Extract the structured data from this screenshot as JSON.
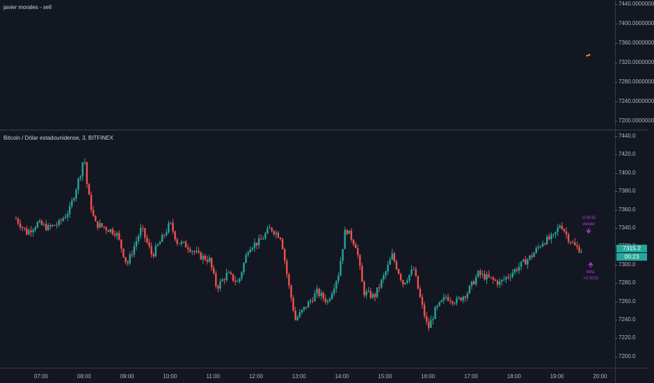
{
  "top_pane": {
    "title": "javier morales - sell",
    "price_ticks": [
      "7440.0000000",
      "7400.0000000",
      "7360.0000000",
      "7320.0000000",
      "7280.0000000",
      "7240.0000000",
      "7200.0000000"
    ],
    "dot_color": "#ff9800"
  },
  "main_pane": {
    "title": "Bitcoin / Dólar estadounidense, 3, BITFINEX",
    "price_ticks": [
      "7440.0",
      "7420.0",
      "7400.0",
      "7380.0",
      "7360.0",
      "7340.0",
      "7320.0",
      "7300.0",
      "7280.0",
      "7260.0",
      "7240.0",
      "7220.0",
      "7200.0"
    ],
    "last_price": "7315.2",
    "countdown": "00:23",
    "signals": {
      "sell_value": "-0.0015",
      "sell_label": "vender",
      "buy_label": "WAL",
      "buy_value": "+0.0015"
    }
  },
  "time_axis": [
    "07:00",
    "08:00",
    "09:00",
    "10:00",
    "11:00",
    "12:00",
    "13:00",
    "14:00",
    "15:00",
    "16:00",
    "17:00",
    "18:00",
    "19:00",
    "20:00"
  ],
  "colors": {
    "bull": "#26a69a",
    "bear": "#ef5350",
    "background": "#131722",
    "signal": "#b041d9"
  },
  "chart_data": {
    "type": "candlestick",
    "title": "Bitcoin / Dólar estadounidense, 3, BITFINEX",
    "ylim": [
      7200,
      7440
    ],
    "x_ticks": [
      "07:00",
      "08:00",
      "09:00",
      "10:00",
      "11:00",
      "12:00",
      "13:00",
      "14:00",
      "15:00",
      "16:00",
      "17:00",
      "18:00",
      "19:00",
      "20:00"
    ],
    "close_path": [
      [
        "06:25",
        7350
      ],
      [
        "06:40",
        7335
      ],
      [
        "06:55",
        7345
      ],
      [
        "07:10",
        7340
      ],
      [
        "07:25",
        7345
      ],
      [
        "07:40",
        7360
      ],
      [
        "07:55",
        7400
      ],
      [
        "08:00",
        7420
      ],
      [
        "08:05",
        7380
      ],
      [
        "08:15",
        7345
      ],
      [
        "08:30",
        7340
      ],
      [
        "08:45",
        7335
      ],
      [
        "09:00",
        7300
      ],
      [
        "09:10",
        7320
      ],
      [
        "09:20",
        7340
      ],
      [
        "09:35",
        7310
      ],
      [
        "09:50",
        7330
      ],
      [
        "10:00",
        7345
      ],
      [
        "10:10",
        7325
      ],
      [
        "10:25",
        7320
      ],
      [
        "10:40",
        7310
      ],
      [
        "10:55",
        7305
      ],
      [
        "11:05",
        7275
      ],
      [
        "11:20",
        7290
      ],
      [
        "11:35",
        7280
      ],
      [
        "11:50",
        7320
      ],
      [
        "12:05",
        7325
      ],
      [
        "12:20",
        7340
      ],
      [
        "12:35",
        7330
      ],
      [
        "12:45",
        7280
      ],
      [
        "12:55",
        7240
      ],
      [
        "13:10",
        7255
      ],
      [
        "13:25",
        7270
      ],
      [
        "13:40",
        7260
      ],
      [
        "13:55",
        7290
      ],
      [
        "14:05",
        7340
      ],
      [
        "14:20",
        7320
      ],
      [
        "14:30",
        7270
      ],
      [
        "14:45",
        7265
      ],
      [
        "15:00",
        7290
      ],
      [
        "15:10",
        7310
      ],
      [
        "15:25",
        7280
      ],
      [
        "15:40",
        7295
      ],
      [
        "15:50",
        7260
      ],
      [
        "16:00",
        7230
      ],
      [
        "16:10",
        7250
      ],
      [
        "16:25",
        7265
      ],
      [
        "16:40",
        7260
      ],
      [
        "16:55",
        7270
      ],
      [
        "17:10",
        7290
      ],
      [
        "17:25",
        7285
      ],
      [
        "17:40",
        7280
      ],
      [
        "17:55",
        7290
      ],
      [
        "18:10",
        7300
      ],
      [
        "18:25",
        7310
      ],
      [
        "18:40",
        7325
      ],
      [
        "18:55",
        7330
      ],
      [
        "19:05",
        7345
      ],
      [
        "19:15",
        7330
      ],
      [
        "19:25",
        7320
      ],
      [
        "19:35",
        7315
      ]
    ]
  }
}
